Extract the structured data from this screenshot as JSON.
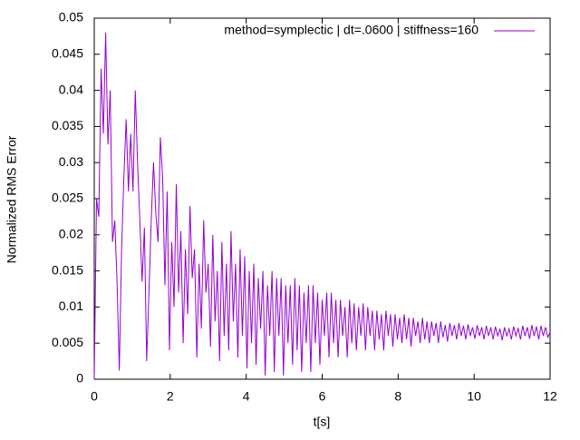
{
  "chart_data": {
    "type": "line",
    "x_label": "t[s]",
    "y_label": "Normalized RMS Error",
    "xlim": [
      0,
      12
    ],
    "xticks": [
      0,
      2,
      4,
      6,
      8,
      10,
      12
    ],
    "ylim": [
      0,
      0.05
    ],
    "yticks": [
      0,
      0.005,
      0.01,
      0.015,
      0.02,
      0.025,
      0.03,
      0.035,
      0.04,
      0.045,
      0.05
    ],
    "legend_position": "top-right",
    "grid": false,
    "x": [
      0,
      0.06,
      0.12,
      0.18,
      0.24,
      0.3,
      0.36,
      0.42,
      0.48,
      0.54,
      0.6,
      0.66,
      0.72,
      0.78,
      0.84,
      0.9,
      0.96,
      1.02,
      1.08,
      1.14,
      1.2,
      1.26,
      1.32,
      1.38,
      1.44,
      1.5,
      1.56,
      1.62,
      1.68,
      1.74,
      1.8,
      1.86,
      1.92,
      1.98,
      2.04,
      2.1,
      2.16,
      2.22,
      2.28,
      2.34,
      2.4,
      2.46,
      2.52,
      2.58,
      2.64,
      2.7,
      2.76,
      2.82,
      2.88,
      2.94,
      3,
      3.06,
      3.12,
      3.18,
      3.24,
      3.3,
      3.36,
      3.42,
      3.48,
      3.54,
      3.6,
      3.66,
      3.72,
      3.78,
      3.84,
      3.9,
      3.96,
      4.02,
      4.08,
      4.14,
      4.2,
      4.26,
      4.32,
      4.38,
      4.44,
      4.5,
      4.56,
      4.62,
      4.68,
      4.74,
      4.8,
      4.86,
      4.92,
      4.98,
      5.04,
      5.1,
      5.16,
      5.22,
      5.28,
      5.34,
      5.4,
      5.46,
      5.52,
      5.58,
      5.64,
      5.7,
      5.76,
      5.82,
      5.88,
      5.94,
      6,
      6.06,
      6.12,
      6.18,
      6.24,
      6.3,
      6.36,
      6.42,
      6.48,
      6.54,
      6.6,
      6.66,
      6.72,
      6.78,
      6.84,
      6.9,
      6.96,
      7.02,
      7.08,
      7.14,
      7.2,
      7.26,
      7.32,
      7.38,
      7.44,
      7.5,
      7.56,
      7.62,
      7.68,
      7.74,
      7.8,
      7.86,
      7.92,
      7.98,
      8.04,
      8.1,
      8.16,
      8.22,
      8.28,
      8.34,
      8.4,
      8.46,
      8.52,
      8.58,
      8.64,
      8.7,
      8.76,
      8.82,
      8.88,
      8.94,
      9,
      9.06,
      9.12,
      9.18,
      9.24,
      9.3,
      9.36,
      9.42,
      9.48,
      9.54,
      9.6,
      9.66,
      9.72,
      9.78,
      9.84,
      9.9,
      9.96,
      10.02,
      10.08,
      10.14,
      10.2,
      10.26,
      10.32,
      10.38,
      10.44,
      10.5,
      10.56,
      10.62,
      10.68,
      10.74,
      10.8,
      10.86,
      10.92,
      10.98,
      11.04,
      11.1,
      11.16,
      11.22,
      11.28,
      11.34,
      11.4,
      11.46,
      11.52,
      11.58,
      11.64,
      11.7,
      11.76,
      11.82,
      11.88,
      11.94,
      12
    ],
    "series": [
      {
        "name": "method=symplectic | dt=.0600 | stiffness=160",
        "color": "#9400d3",
        "values": [
          0.0,
          0.025,
          0.0225,
          0.043,
          0.034,
          0.048,
          0.0325,
          0.04,
          0.019,
          0.022,
          0.0135,
          0.0012,
          0.018,
          0.028,
          0.036,
          0.026,
          0.034,
          0.026,
          0.04,
          0.03,
          0.022,
          0.0135,
          0.021,
          0.0025,
          0.012,
          0.022,
          0.03,
          0.023,
          0.019,
          0.0335,
          0.028,
          0.013,
          0.026,
          0.004,
          0.019,
          0.01,
          0.027,
          0.012,
          0.0205,
          0.005,
          0.018,
          0.009,
          0.024,
          0.014,
          0.018,
          0.003,
          0.016,
          0.007,
          0.022,
          0.012,
          0.016,
          0.0045,
          0.02,
          0.008,
          0.015,
          0.0025,
          0.019,
          0.006,
          0.016,
          0.004,
          0.0205,
          0.008,
          0.016,
          0.003,
          0.018,
          0.006,
          0.017,
          0.0015,
          0.015,
          0.005,
          0.016,
          0.002,
          0.014,
          0.007,
          0.015,
          0.0005,
          0.013,
          0.006,
          0.015,
          0.001,
          0.014,
          0.006,
          0.014,
          0.0005,
          0.013,
          0.005,
          0.013,
          0.002,
          0.014,
          0.004,
          0.013,
          0.001,
          0.012,
          0.005,
          0.013,
          0.001,
          0.013,
          0.005,
          0.012,
          0.002,
          0.011,
          0.006,
          0.012,
          0.003,
          0.012,
          0.005,
          0.011,
          0.003,
          0.011,
          0.006,
          0.01,
          0.003,
          0.011,
          0.005,
          0.0105,
          0.004,
          0.01,
          0.006,
          0.0105,
          0.004,
          0.01,
          0.006,
          0.0095,
          0.004,
          0.0095,
          0.0055,
          0.009,
          0.004,
          0.0095,
          0.006,
          0.009,
          0.0045,
          0.009,
          0.0055,
          0.0085,
          0.005,
          0.009,
          0.0055,
          0.0085,
          0.0045,
          0.0085,
          0.006,
          0.008,
          0.005,
          0.0085,
          0.0055,
          0.008,
          0.005,
          0.008,
          0.006,
          0.0078,
          0.005,
          0.008,
          0.0058,
          0.0075,
          0.0052,
          0.0078,
          0.006,
          0.0075,
          0.0055,
          0.0078,
          0.006,
          0.0074,
          0.0055,
          0.0076,
          0.006,
          0.0072,
          0.0056,
          0.0075,
          0.006,
          0.0072,
          0.0055,
          0.0074,
          0.006,
          0.0072,
          0.0055,
          0.0073,
          0.006,
          0.007,
          0.0054,
          0.0072,
          0.006,
          0.007,
          0.0055,
          0.0073,
          0.006,
          0.0071,
          0.0055,
          0.0074,
          0.006,
          0.0072,
          0.0056,
          0.0075,
          0.006,
          0.0073,
          0.0055,
          0.0074,
          0.006,
          0.0072,
          0.0058,
          0.0065
        ]
      }
    ]
  }
}
